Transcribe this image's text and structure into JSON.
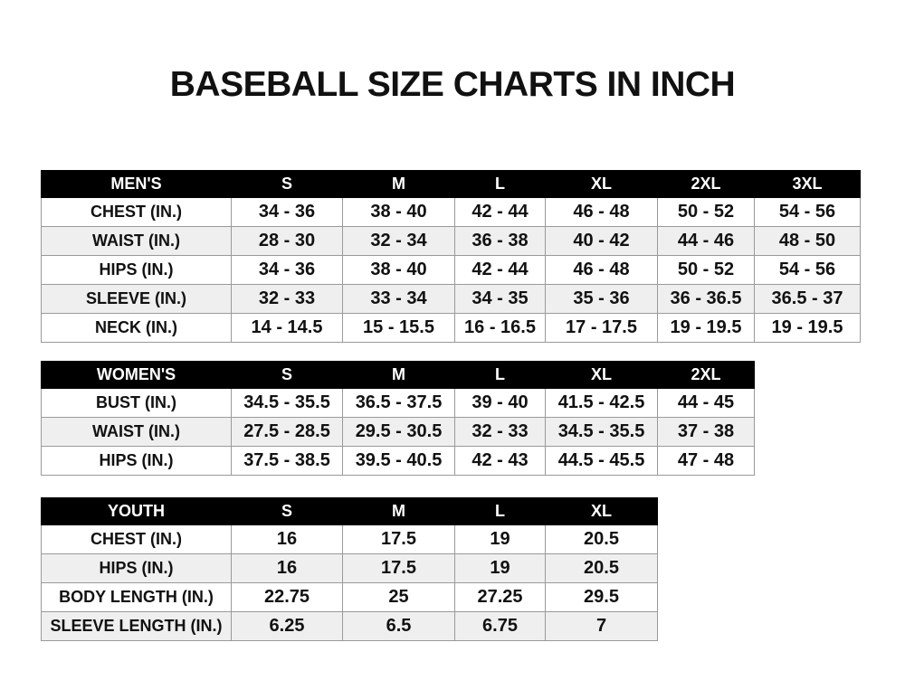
{
  "title": "BASEBALL SIZE CHARTS IN INCH",
  "tables": [
    {
      "id": "men",
      "header": [
        "MEN'S",
        "S",
        "M",
        "L",
        "XL",
        "2XL",
        "3XL"
      ],
      "rows": [
        [
          "CHEST (IN.)",
          "34 - 36",
          "38 - 40",
          "42 - 44",
          "46 - 48",
          "50 - 52",
          "54 - 56"
        ],
        [
          "WAIST (IN.)",
          "28 - 30",
          "32 - 34",
          "36 - 38",
          "40 - 42",
          "44 - 46",
          "48 - 50"
        ],
        [
          "HIPS (IN.)",
          "34 - 36",
          "38 - 40",
          "42 - 44",
          "46 - 48",
          "50 - 52",
          "54 - 56"
        ],
        [
          "SLEEVE (IN.)",
          "32 - 33",
          "33 - 34",
          "34 - 35",
          "35 - 36",
          "36 - 36.5",
          "36.5 - 37"
        ],
        [
          "NECK (IN.)",
          "14 - 14.5",
          "15 - 15.5",
          "16 - 16.5",
          "17 - 17.5",
          "19 - 19.5",
          "19 - 19.5"
        ]
      ]
    },
    {
      "id": "women",
      "header": [
        "WOMEN'S",
        "S",
        "M",
        "L",
        "XL",
        "2XL"
      ],
      "rows": [
        [
          "BUST (IN.)",
          "34.5 - 35.5",
          "36.5 - 37.5",
          "39 - 40",
          "41.5 - 42.5",
          "44 - 45"
        ],
        [
          "WAIST (IN.)",
          "27.5 - 28.5",
          "29.5 - 30.5",
          "32 - 33",
          "34.5 - 35.5",
          "37 - 38"
        ],
        [
          "HIPS (IN.)",
          "37.5 - 38.5",
          "39.5 - 40.5",
          "42 - 43",
          "44.5 - 45.5",
          "47 - 48"
        ]
      ]
    },
    {
      "id": "youth",
      "header": [
        "YOUTH",
        "S",
        "M",
        "L",
        "XL"
      ],
      "rows": [
        [
          "CHEST (IN.)",
          "16",
          "17.5",
          "19",
          "20.5"
        ],
        [
          "HIPS (IN.)",
          "16",
          "17.5",
          "19",
          "20.5"
        ],
        [
          "BODY LENGTH (IN.)",
          "22.75",
          "25",
          "27.25",
          "29.5"
        ],
        [
          "SLEEVE LENGTH (IN.)",
          "6.25",
          "6.5",
          "6.75",
          "7"
        ]
      ]
    }
  ],
  "colors": {
    "header_bg": "#000000",
    "header_text": "#ffffff",
    "alt_row": "#efefef",
    "border": "#9a9a9a"
  }
}
